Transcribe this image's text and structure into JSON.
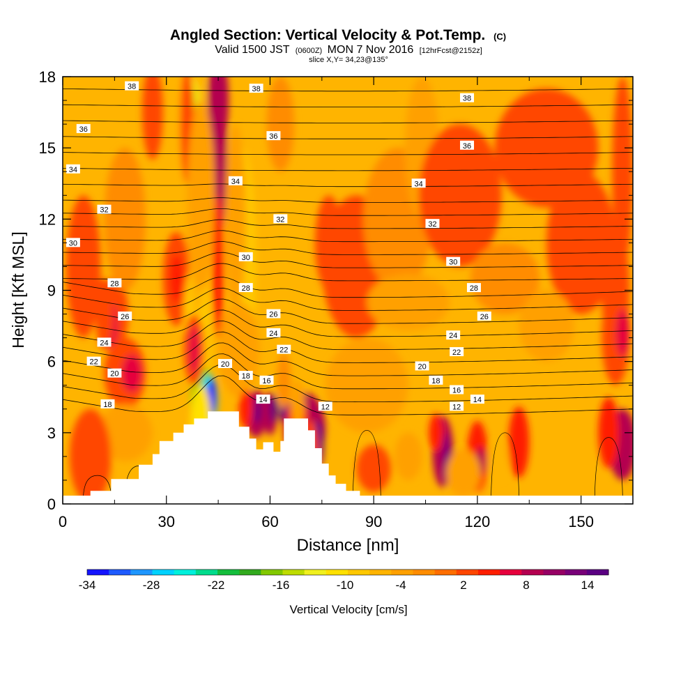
{
  "chart_data": {
    "type": "heatmap",
    "title": "Angled Section: Vertical Velocity & Pot.Temp.",
    "title_unit": "(C)",
    "subtitle_parts": [
      "Valid 1500 JST",
      "(0600Z)",
      "MON 7 Nov 2016",
      "[12hrFcst@2152z]"
    ],
    "slice_label": "slice X,Y= 34,23@135°",
    "xlabel": "Distance [nm]",
    "ylabel": "Height [Kft MSL]",
    "xlim": [
      0,
      165
    ],
    "ylim": [
      0,
      18
    ],
    "xticks": [
      0,
      30,
      60,
      90,
      120,
      150
    ],
    "yticks": [
      0,
      3,
      6,
      9,
      12,
      15,
      18
    ],
    "colorbar": {
      "label": "Vertical Velocity [cm/s]",
      "tick_labels": [
        "-34",
        "-28",
        "-22",
        "-16",
        "-10",
        "-4",
        "2",
        "8",
        "14"
      ],
      "colors": [
        "#1414ff",
        "#1e5aff",
        "#1e96ff",
        "#00d2ff",
        "#00f0dc",
        "#00dc8c",
        "#14be3c",
        "#32aa1e",
        "#82c800",
        "#bedc00",
        "#f0f01e",
        "#ffe100",
        "#ffc800",
        "#ffb400",
        "#ffa000",
        "#ff8c00",
        "#ff6e00",
        "#ff4600",
        "#ff1e00",
        "#e6003c",
        "#b40050",
        "#960064",
        "#780078",
        "#5a0082"
      ]
    },
    "background_color": "#ffb400",
    "terrain": [
      [
        0,
        0.35
      ],
      [
        8,
        0.35
      ],
      [
        8,
        0.55
      ],
      [
        14,
        0.55
      ],
      [
        14,
        1.05
      ],
      [
        22,
        1.05
      ],
      [
        22,
        1.65
      ],
      [
        26,
        1.65
      ],
      [
        26,
        2.1
      ],
      [
        28,
        2.1
      ],
      [
        28,
        2.65
      ],
      [
        32,
        2.65
      ],
      [
        32,
        3.0
      ],
      [
        35,
        3.0
      ],
      [
        35,
        3.35
      ],
      [
        38,
        3.35
      ],
      [
        38,
        3.6
      ],
      [
        42,
        3.6
      ],
      [
        42,
        3.9
      ],
      [
        51,
        3.9
      ],
      [
        51,
        3.25
      ],
      [
        54,
        3.25
      ],
      [
        54,
        2.75
      ],
      [
        56,
        2.75
      ],
      [
        56,
        2.3
      ],
      [
        58,
        2.3
      ],
      [
        58,
        2.6
      ],
      [
        61,
        2.6
      ],
      [
        61,
        2.2
      ],
      [
        63,
        2.2
      ],
      [
        63,
        2.65
      ],
      [
        64,
        2.65
      ],
      [
        64,
        3.6
      ],
      [
        71,
        3.6
      ],
      [
        71,
        3.1
      ],
      [
        73,
        3.1
      ],
      [
        73,
        2.35
      ],
      [
        75,
        2.35
      ],
      [
        75,
        1.7
      ],
      [
        77,
        1.7
      ],
      [
        77,
        1.2
      ],
      [
        79,
        1.2
      ],
      [
        79,
        0.85
      ],
      [
        82,
        0.85
      ],
      [
        82,
        0.55
      ],
      [
        86,
        0.55
      ],
      [
        86,
        0.35
      ],
      [
        165,
        0.35
      ]
    ],
    "isentropes": [
      12,
      13,
      14,
      15,
      16,
      17,
      18,
      19,
      20,
      21,
      22,
      23,
      24,
      25,
      26,
      27,
      28,
      29,
      30,
      31,
      32,
      33,
      34,
      35,
      36,
      37,
      38
    ],
    "isentrope_labels": [
      {
        "t": "38",
        "x": 20,
        "y": 17.6
      },
      {
        "t": "38",
        "x": 56,
        "y": 17.5
      },
      {
        "t": "38",
        "x": 117,
        "y": 17.1
      },
      {
        "t": "36",
        "x": 6,
        "y": 15.8
      },
      {
        "t": "36",
        "x": 61,
        "y": 15.5
      },
      {
        "t": "36",
        "x": 117,
        "y": 15.1
      },
      {
        "t": "34",
        "x": 3,
        "y": 14.1
      },
      {
        "t": "34",
        "x": 50,
        "y": 13.6
      },
      {
        "t": "34",
        "x": 103,
        "y": 13.5
      },
      {
        "t": "32",
        "x": 12,
        "y": 12.4
      },
      {
        "t": "32",
        "x": 63,
        "y": 12.0
      },
      {
        "t": "32",
        "x": 107,
        "y": 11.8
      },
      {
        "t": "30",
        "x": 3,
        "y": 11.0
      },
      {
        "t": "30",
        "x": 53,
        "y": 10.4
      },
      {
        "t": "30",
        "x": 113,
        "y": 10.2
      },
      {
        "t": "28",
        "x": 15,
        "y": 9.3
      },
      {
        "t": "28",
        "x": 53,
        "y": 9.1
      },
      {
        "t": "28",
        "x": 119,
        "y": 9.1
      },
      {
        "t": "26",
        "x": 18,
        "y": 7.9
      },
      {
        "t": "26",
        "x": 61,
        "y": 8.0
      },
      {
        "t": "26",
        "x": 122,
        "y": 7.9
      },
      {
        "t": "24",
        "x": 12,
        "y": 6.8
      },
      {
        "t": "24",
        "x": 61,
        "y": 7.2
      },
      {
        "t": "24",
        "x": 113,
        "y": 7.1
      },
      {
        "t": "22",
        "x": 9,
        "y": 6.0
      },
      {
        "t": "22",
        "x": 64,
        "y": 6.5
      },
      {
        "t": "22",
        "x": 114,
        "y": 6.4
      },
      {
        "t": "20",
        "x": 15,
        "y": 5.5
      },
      {
        "t": "20",
        "x": 47,
        "y": 5.9
      },
      {
        "t": "20",
        "x": 104,
        "y": 5.8
      },
      {
        "t": "18",
        "x": 13,
        "y": 4.2
      },
      {
        "t": "18",
        "x": 53,
        "y": 5.4
      },
      {
        "t": "18",
        "x": 108,
        "y": 5.2
      },
      {
        "t": "16",
        "x": 59,
        "y": 5.2
      },
      {
        "t": "16",
        "x": 114,
        "y": 4.8
      },
      {
        "t": "14",
        "x": 58,
        "y": 4.4
      },
      {
        "t": "14",
        "x": 120,
        "y": 4.4
      },
      {
        "t": "12",
        "x": 76,
        "y": 4.1
      },
      {
        "t": "12",
        "x": 114,
        "y": 4.1
      }
    ],
    "vertical_velocity_features": [
      {
        "x": 37,
        "y": 14,
        "rx": 5,
        "ry": 6,
        "v": -6
      },
      {
        "x": 37,
        "y": 16,
        "rx": 3,
        "ry": 2,
        "v": -12
      },
      {
        "x": 37,
        "y": 16.5,
        "rx": 1.5,
        "ry": 1.2,
        "v": -14
      },
      {
        "x": 40,
        "y": 12,
        "rx": 2,
        "ry": 5,
        "v": -8
      },
      {
        "x": 40,
        "y": 6.5,
        "rx": 3,
        "ry": 3,
        "v": -9
      },
      {
        "x": 41,
        "y": 4.3,
        "rx": 4,
        "ry": 1.4,
        "v": -16
      },
      {
        "x": 42,
        "y": 4.4,
        "rx": 2,
        "ry": 1,
        "v": -24
      },
      {
        "x": 43,
        "y": 4.5,
        "rx": 1.5,
        "ry": 0.8,
        "v": -32
      },
      {
        "x": 40,
        "y": 3.5,
        "rx": 3,
        "ry": 1.5,
        "v": -10
      },
      {
        "x": 45,
        "y": 15,
        "rx": 2.5,
        "ry": 4,
        "v": 8
      },
      {
        "x": 45,
        "y": 17,
        "rx": 3,
        "ry": 2,
        "v": 8
      },
      {
        "x": 45,
        "y": 10,
        "rx": 1.5,
        "ry": 3,
        "v": 4
      },
      {
        "x": 36,
        "y": 16,
        "rx": 2,
        "ry": 2.5,
        "v": 2
      },
      {
        "x": 26,
        "y": 16.5,
        "rx": 3,
        "ry": 2,
        "v": 2
      },
      {
        "x": 33,
        "y": 9.5,
        "rx": 4,
        "ry": 2,
        "v": 2
      },
      {
        "x": 33,
        "y": 9.5,
        "rx": 2,
        "ry": 1,
        "v": 4
      },
      {
        "x": 38,
        "y": 8,
        "rx": 3,
        "ry": 2,
        "v": -8
      },
      {
        "x": 39,
        "y": 11,
        "rx": 2.5,
        "ry": 3,
        "v": -5
      },
      {
        "x": 52,
        "y": 10,
        "rx": 4,
        "ry": 5,
        "v": -8
      },
      {
        "x": 50,
        "y": 12,
        "rx": 3,
        "ry": 4,
        "v": -4
      },
      {
        "x": 51,
        "y": 6.5,
        "rx": 6,
        "ry": 2,
        "v": -4
      },
      {
        "x": 40,
        "y": 13,
        "rx": 4,
        "ry": 4,
        "v": -4
      },
      {
        "x": 38,
        "y": 6.5,
        "rx": 3,
        "ry": 1.5,
        "v": 2
      },
      {
        "x": 38,
        "y": 6.5,
        "rx": 1.5,
        "ry": 1,
        "v": 6
      },
      {
        "x": 63,
        "y": 16,
        "rx": 4,
        "ry": 2,
        "v": -2
      },
      {
        "x": 15,
        "y": 8,
        "rx": 4,
        "ry": 1.5,
        "v": 2
      },
      {
        "x": 14,
        "y": 7.5,
        "rx": 2,
        "ry": 1,
        "v": 6
      },
      {
        "x": 12,
        "y": 8,
        "rx": 2.5,
        "ry": 1.5,
        "v": 3
      },
      {
        "x": 18,
        "y": 5.5,
        "rx": 6,
        "ry": 1.5,
        "v": 2
      },
      {
        "x": 20,
        "y": 5.5,
        "rx": 3,
        "ry": 0.8,
        "v": 6
      },
      {
        "x": 18,
        "y": 3,
        "rx": 8,
        "ry": 1.2,
        "v": -3
      },
      {
        "x": 8,
        "y": 2,
        "rx": 6,
        "ry": 2,
        "v": 2
      },
      {
        "x": 6,
        "y": 10,
        "rx": 5,
        "ry": 3,
        "v": 2
      },
      {
        "x": 18,
        "y": 12,
        "rx": 6,
        "ry": 3,
        "v": -2
      },
      {
        "x": 56,
        "y": 3.8,
        "rx": 3,
        "ry": 1,
        "v": 8
      },
      {
        "x": 56,
        "y": 3.9,
        "rx": 1.5,
        "ry": 0.5,
        "v": 12
      },
      {
        "x": 60,
        "y": 3.8,
        "rx": 2,
        "ry": 0.9,
        "v": 8
      },
      {
        "x": 61,
        "y": 4.0,
        "rx": 1,
        "ry": 0.6,
        "v": 14
      },
      {
        "x": 64,
        "y": 4.2,
        "rx": 1.5,
        "ry": 0.8,
        "v": 16
      },
      {
        "x": 53,
        "y": 4,
        "rx": 2,
        "ry": 0.8,
        "v": 4
      },
      {
        "x": 64,
        "y": 5.2,
        "rx": 2,
        "ry": 1.2,
        "v": -2
      },
      {
        "x": 70,
        "y": 3.2,
        "rx": 6,
        "ry": 1.5,
        "v": 8
      },
      {
        "x": 68,
        "y": 3.6,
        "rx": 3,
        "ry": 0.8,
        "v": 4
      },
      {
        "x": 74,
        "y": 2.5,
        "rx": 1.5,
        "ry": 1,
        "v": 14
      },
      {
        "x": 68,
        "y": 4.2,
        "rx": 2,
        "ry": 1,
        "v": -3
      },
      {
        "x": 72,
        "y": 2,
        "rx": 2,
        "ry": 1.5,
        "v": 2
      },
      {
        "x": 88,
        "y": 5,
        "rx": 12,
        "ry": 2,
        "v": -3
      },
      {
        "x": 85,
        "y": 10,
        "rx": 10,
        "ry": 3,
        "v": 2
      },
      {
        "x": 77,
        "y": 11,
        "rx": 4,
        "ry": 2,
        "v": 2
      },
      {
        "x": 97,
        "y": 12,
        "rx": 10,
        "ry": 3,
        "v": -2
      },
      {
        "x": 104,
        "y": 15,
        "rx": 5,
        "ry": 3,
        "v": -3
      },
      {
        "x": 115,
        "y": 13,
        "rx": 12,
        "ry": 3,
        "v": 2
      },
      {
        "x": 140,
        "y": 15,
        "rx": 15,
        "ry": 2.5,
        "v": 2
      },
      {
        "x": 150,
        "y": 11,
        "rx": 10,
        "ry": 3,
        "v": 2
      },
      {
        "x": 162,
        "y": 14,
        "rx": 3,
        "ry": 4,
        "v": 2
      },
      {
        "x": 160,
        "y": 9,
        "rx": 4,
        "ry": 3,
        "v": 2
      },
      {
        "x": 128,
        "y": 9.5,
        "rx": 10,
        "ry": 1.5,
        "v": -2
      },
      {
        "x": 100,
        "y": 8.5,
        "rx": 12,
        "ry": 1.2,
        "v": -3
      },
      {
        "x": 140,
        "y": 7.5,
        "rx": 8,
        "ry": 1.5,
        "v": -3
      },
      {
        "x": 160,
        "y": 7,
        "rx": 4,
        "ry": 2,
        "v": 2
      },
      {
        "x": 162,
        "y": 7.2,
        "rx": 2,
        "ry": 1,
        "v": 6
      },
      {
        "x": 110,
        "y": 2.2,
        "rx": 3,
        "ry": 1.5,
        "v": 8
      },
      {
        "x": 111,
        "y": 2,
        "rx": 1,
        "ry": 1,
        "v": 12
      },
      {
        "x": 108,
        "y": 3,
        "rx": 2,
        "ry": 0.8,
        "v": 4
      },
      {
        "x": 120,
        "y": 2,
        "rx": 3,
        "ry": 1.5,
        "v": 4
      },
      {
        "x": 121,
        "y": 1.8,
        "rx": 1.5,
        "ry": 0.6,
        "v": 8
      },
      {
        "x": 132,
        "y": 2.6,
        "rx": 3,
        "ry": 1.5,
        "v": 4
      },
      {
        "x": 162,
        "y": 2.5,
        "rx": 4,
        "ry": 1.5,
        "v": 8
      },
      {
        "x": 158,
        "y": 3,
        "rx": 3,
        "ry": 1.5,
        "v": 4
      },
      {
        "x": 100,
        "y": 2,
        "rx": 4,
        "ry": 1,
        "v": -3
      },
      {
        "x": 116,
        "y": 1.3,
        "rx": 5,
        "ry": 1,
        "v": -3
      },
      {
        "x": 126,
        "y": 1.8,
        "rx": 3,
        "ry": 0.8,
        "v": -6
      },
      {
        "x": 90,
        "y": 1.5,
        "rx": 5,
        "ry": 1,
        "v": 2
      }
    ]
  }
}
